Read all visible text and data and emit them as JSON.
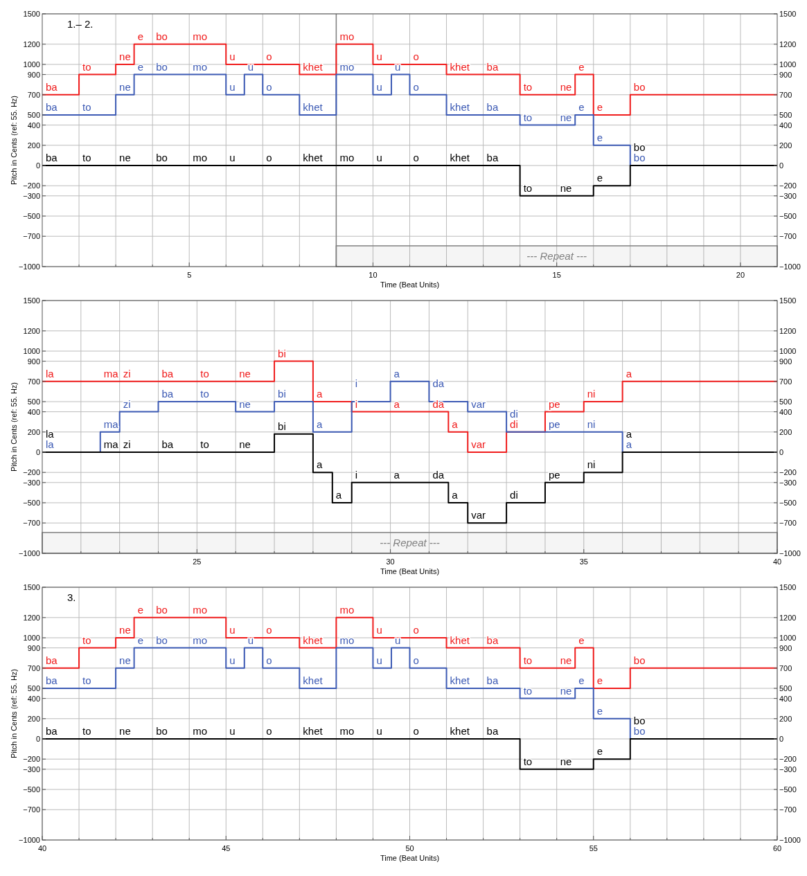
{
  "chart_data": [
    {
      "type": "step",
      "xlabel": "Time (Beat Units)",
      "ylabel": "Pitch in Cents (ref: 55. Hz)",
      "annotations": [
        "1.– 2."
      ],
      "grid": true,
      "xlim": [
        1,
        21
      ],
      "xticks": [
        {
          "value": 2,
          "label": null
        },
        {
          "value": 3,
          "label": null
        },
        {
          "value": 4,
          "label": null
        },
        5,
        {
          "value": 6,
          "label": null
        },
        {
          "value": 7,
          "label": null
        },
        {
          "value": 8,
          "label": null
        },
        {
          "value": 9,
          "label": null
        },
        10,
        {
          "value": 11,
          "label": null
        },
        {
          "value": 12,
          "label": null
        },
        {
          "value": 13,
          "label": null
        },
        {
          "value": 14,
          "label": null
        },
        15,
        {
          "value": 16,
          "label": null
        },
        {
          "value": 17,
          "label": null
        },
        {
          "value": 18,
          "label": null
        },
        {
          "value": 19,
          "label": null
        },
        20
      ],
      "ylim": [
        -1000,
        1500
      ],
      "yticks": [
        {
          "value": -1000,
          "label": "−1000"
        },
        {
          "value": -700,
          "label": "−700"
        },
        {
          "value": -500,
          "label": "−500"
        },
        {
          "value": -300,
          "label": "−300"
        },
        {
          "value": -200,
          "label": "−200"
        },
        0,
        200,
        400,
        500,
        700,
        900,
        1000,
        1200,
        1500
      ],
      "y2lim": [
        -1000,
        1500
      ],
      "y2ticks": [
        {
          "value": -1000,
          "label": "−1000"
        },
        {
          "value": -700,
          "label": "−700"
        },
        {
          "value": -500,
          "label": "−500"
        },
        {
          "value": -300,
          "label": "−300"
        },
        {
          "value": -200,
          "label": "−200"
        },
        0,
        200,
        400,
        500,
        700,
        900,
        1000,
        1200,
        1500
      ],
      "bands": [
        {
          "axis": "x",
          "from": 9,
          "to": 21,
          "label": "--- Repeat ---",
          "color": "#808080"
        }
      ],
      "ref_lines": [
        {
          "axis": "x",
          "value": 9,
          "color": "#808080"
        }
      ],
      "series": [
        {
          "color": "#f01c1c",
          "x": [
            1,
            2,
            3,
            3.5,
            4,
            5,
            6,
            7,
            8,
            9,
            10,
            11,
            12,
            13,
            14,
            15,
            15.5,
            16,
            17,
            21
          ],
          "values": [
            700,
            900,
            1000,
            1200,
            1200,
            1200,
            1000,
            1000,
            900,
            1200,
            1000,
            1000,
            900,
            900,
            700,
            700,
            900,
            500,
            700,
            700
          ],
          "value_labels": [
            "ba",
            "to",
            "ne",
            "e",
            "bo",
            "mo",
            "u",
            "o",
            "khet",
            "mo",
            "u",
            "o",
            "khet",
            "ba",
            "to",
            "ne",
            "e",
            "e",
            "bo",
            null
          ]
        },
        {
          "color": "#3c5ab4",
          "x": [
            1,
            2,
            3,
            3.5,
            4,
            5,
            6,
            6.5,
            7,
            8,
            9,
            10,
            10.5,
            11,
            12,
            13,
            14,
            15,
            15.5,
            16,
            17,
            21
          ],
          "values": [
            500,
            500,
            700,
            900,
            900,
            900,
            700,
            900,
            700,
            500,
            900,
            700,
            900,
            700,
            500,
            500,
            400,
            400,
            500,
            200,
            0,
            0
          ],
          "value_labels": [
            "ba",
            "to",
            "ne",
            "e",
            "bo",
            "mo",
            "u",
            "u",
            "o",
            "khet",
            "mo",
            "u",
            "u",
            "o",
            "khet",
            "ba",
            "to",
            "ne",
            "e",
            "e",
            "bo",
            null
          ]
        },
        {
          "color": "#000000",
          "x": [
            1,
            2,
            3,
            4,
            5,
            6,
            7,
            8,
            9,
            10,
            11,
            12,
            13,
            14,
            15,
            16,
            17,
            21
          ],
          "values": [
            0,
            0,
            0,
            0,
            0,
            0,
            0,
            0,
            0,
            0,
            0,
            0,
            0,
            -300,
            -300,
            -200,
            0,
            0
          ],
          "value_labels": [
            "ba",
            "to",
            "ne",
            "bo",
            "mo",
            "u",
            "o",
            "khet",
            "mo",
            "u",
            "o",
            "khet",
            "ba",
            "to",
            "ne",
            "e",
            "bo",
            null
          ]
        }
      ]
    },
    {
      "type": "step",
      "xlabel": "Time (Beat Units)",
      "ylabel": "Pitch in Cents (ref: 55. Hz)",
      "grid": true,
      "xlim": [
        21,
        40
      ],
      "xticks": [
        {
          "value": 22,
          "label": null
        },
        {
          "value": 23,
          "label": null
        },
        {
          "value": 24,
          "label": null
        },
        25,
        {
          "value": 26,
          "label": null
        },
        {
          "value": 27,
          "label": null
        },
        {
          "value": 28,
          "label": null
        },
        {
          "value": 29,
          "label": null
        },
        30,
        {
          "value": 31,
          "label": null
        },
        {
          "value": 32,
          "label": null
        },
        {
          "value": 33,
          "label": null
        },
        {
          "value": 34,
          "label": null
        },
        35,
        {
          "value": 36,
          "label": null
        },
        {
          "value": 37,
          "label": null
        },
        {
          "value": 38,
          "label": null
        },
        {
          "value": 39,
          "label": null
        },
        40
      ],
      "ylim": [
        -1000,
        1500
      ],
      "yticks": [
        {
          "value": -1000,
          "label": "−1000"
        },
        {
          "value": -700,
          "label": "−700"
        },
        {
          "value": -500,
          "label": "−500"
        },
        {
          "value": -300,
          "label": "−300"
        },
        {
          "value": -200,
          "label": "−200"
        },
        0,
        200,
        400,
        500,
        700,
        900,
        1000,
        1200,
        1500
      ],
      "y2lim": [
        -1000,
        1500
      ],
      "y2ticks": [
        {
          "value": -1000,
          "label": "−1000"
        },
        {
          "value": -700,
          "label": "−700"
        },
        {
          "value": -500,
          "label": "−500"
        },
        {
          "value": -300,
          "label": "−300"
        },
        {
          "value": -200,
          "label": "−200"
        },
        0,
        200,
        400,
        500,
        700,
        900,
        1000,
        1200,
        1500
      ],
      "bands": [
        {
          "axis": "x",
          "from": 21,
          "to": 40,
          "label": "--- Repeat ---",
          "color": "#808080"
        }
      ],
      "series": [
        {
          "color": "#f01c1c",
          "x": [
            21,
            22.5,
            23,
            24,
            25,
            26,
            27,
            28,
            29,
            30,
            31,
            31.5,
            32,
            33,
            34,
            35,
            36,
            40
          ],
          "values": [
            700,
            700,
            700,
            700,
            700,
            700,
            900,
            500,
            400,
            400,
            400,
            200,
            0,
            200,
            400,
            500,
            700,
            700
          ],
          "value_labels": [
            "la",
            "ma",
            "zi",
            "ba",
            "to",
            "ne",
            "bi",
            "a",
            "i",
            "a",
            "da",
            "a",
            "var",
            "di",
            "pe",
            "ni",
            "a",
            null
          ]
        },
        {
          "color": "#3c5ab4",
          "x": [
            21,
            22.5,
            23,
            24,
            25,
            26,
            27,
            28,
            29,
            30,
            31,
            32,
            33,
            34,
            35,
            36,
            40
          ],
          "values": [
            0,
            200,
            400,
            500,
            500,
            400,
            500,
            200,
            500,
            700,
            500,
            400,
            200,
            200,
            200,
            0,
            0
          ],
          "value_labels": [
            "la",
            "ma",
            "zi",
            "ba",
            "to",
            "ne",
            "bi",
            "a",
            "i",
            "a",
            "da",
            "var",
            "di",
            "pe",
            "ni",
            "a",
            null
          ]
        },
        {
          "color": "#000000",
          "x": [
            21,
            22.5,
            23,
            24,
            25,
            26,
            27,
            28,
            28.5,
            29,
            30,
            31,
            31.5,
            32,
            33,
            34,
            35,
            36,
            40
          ],
          "values": [
            0,
            0,
            0,
            0,
            0,
            0,
            180,
            -200,
            -500,
            -300,
            -300,
            -300,
            -500,
            -700,
            -500,
            -300,
            -200,
            0,
            0
          ],
          "value_labels": [
            "la",
            "ma",
            "zi",
            "ba",
            "to",
            "ne",
            "bi",
            "a",
            "a",
            "i",
            "a",
            "da",
            "a",
            "var",
            "di",
            "pe",
            "ni",
            "a",
            null
          ]
        }
      ]
    },
    {
      "type": "step",
      "xlabel": "Time (Beat Units)",
      "ylabel": "Pitch in Cents (ref: 55. Hz)",
      "annotations": [
        "3."
      ],
      "grid": true,
      "xlim": [
        40,
        60
      ],
      "xticks": [
        40,
        {
          "value": 41,
          "label": null
        },
        {
          "value": 42,
          "label": null
        },
        {
          "value": 43,
          "label": null
        },
        {
          "value": 44,
          "label": null
        },
        45,
        {
          "value": 46,
          "label": null
        },
        {
          "value": 47,
          "label": null
        },
        {
          "value": 48,
          "label": null
        },
        {
          "value": 49,
          "label": null
        },
        50,
        {
          "value": 51,
          "label": null
        },
        {
          "value": 52,
          "label": null
        },
        {
          "value": 53,
          "label": null
        },
        {
          "value": 54,
          "label": null
        },
        55,
        {
          "value": 56,
          "label": null
        },
        {
          "value": 57,
          "label": null
        },
        {
          "value": 58,
          "label": null
        },
        {
          "value": 59,
          "label": null
        },
        60
      ],
      "ylim": [
        -1000,
        1500
      ],
      "yticks": [
        {
          "value": -1000,
          "label": "−1000"
        },
        {
          "value": -700,
          "label": "−700"
        },
        {
          "value": -500,
          "label": "−500"
        },
        {
          "value": -300,
          "label": "−300"
        },
        {
          "value": -200,
          "label": "−200"
        },
        0,
        200,
        400,
        500,
        700,
        900,
        1000,
        1200,
        1500
      ],
      "y2lim": [
        -1000,
        1500
      ],
      "y2ticks": [
        {
          "value": -1000,
          "label": "−1000"
        },
        {
          "value": -700,
          "label": "−700"
        },
        {
          "value": -500,
          "label": "−500"
        },
        {
          "value": -300,
          "label": "−300"
        },
        {
          "value": -200,
          "label": "−200"
        },
        0,
        200,
        400,
        500,
        700,
        900,
        1000,
        1200,
        1500
      ],
      "series": [
        {
          "color": "#f01c1c",
          "x": [
            40,
            41,
            42,
            42.5,
            43,
            44,
            45,
            46,
            47,
            48,
            49,
            50,
            51,
            52,
            53,
            54,
            54.5,
            55,
            56,
            60
          ],
          "values": [
            700,
            900,
            1000,
            1200,
            1200,
            1200,
            1000,
            1000,
            900,
            1200,
            1000,
            1000,
            900,
            900,
            700,
            700,
            900,
            500,
            700,
            700
          ],
          "value_labels": [
            "ba",
            "to",
            "ne",
            "e",
            "bo",
            "mo",
            "u",
            "o",
            "khet",
            "mo",
            "u",
            "o",
            "khet",
            "ba",
            "to",
            "ne",
            "e",
            "e",
            "bo",
            null
          ]
        },
        {
          "color": "#3c5ab4",
          "x": [
            40,
            41,
            42,
            42.5,
            43,
            44,
            45,
            45.5,
            46,
            47,
            48,
            49,
            49.5,
            50,
            51,
            52,
            53,
            54,
            54.5,
            55,
            56,
            60
          ],
          "values": [
            500,
            500,
            700,
            900,
            900,
            900,
            700,
            900,
            700,
            500,
            900,
            700,
            900,
            700,
            500,
            500,
            400,
            400,
            500,
            200,
            0,
            0
          ],
          "value_labels": [
            "ba",
            "to",
            "ne",
            "e",
            "bo",
            "mo",
            "u",
            "u",
            "o",
            "khet",
            "mo",
            "u",
            "u",
            "o",
            "khet",
            "ba",
            "to",
            "ne",
            "e",
            "e",
            "bo",
            null
          ]
        },
        {
          "color": "#000000",
          "x": [
            40,
            41,
            42,
            43,
            44,
            45,
            46,
            47,
            48,
            49,
            50,
            51,
            52,
            53,
            54,
            55,
            56,
            60
          ],
          "values": [
            0,
            0,
            0,
            0,
            0,
            0,
            0,
            0,
            0,
            0,
            0,
            0,
            0,
            -300,
            -300,
            -200,
            0,
            0
          ],
          "value_labels": [
            "ba",
            "to",
            "ne",
            "bo",
            "mo",
            "u",
            "o",
            "khet",
            "mo",
            "u",
            "o",
            "khet",
            "ba",
            "to",
            "ne",
            "e",
            "bo",
            null
          ]
        }
      ]
    }
  ]
}
